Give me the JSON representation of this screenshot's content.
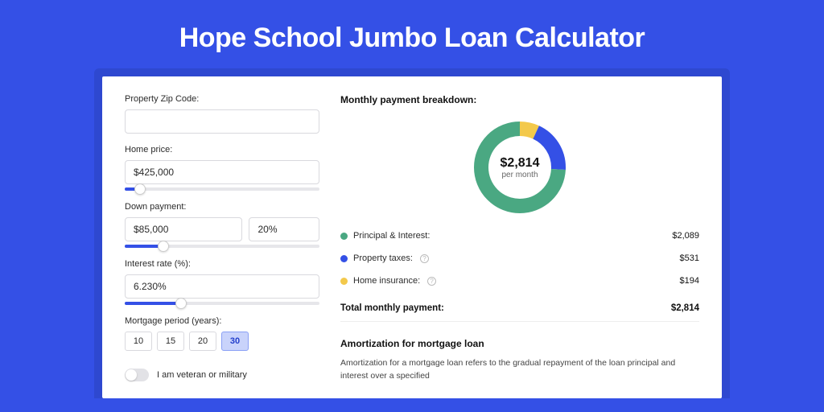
{
  "page": {
    "title": "Hope School Jumbo Loan Calculator",
    "background_color": "#3450e6",
    "shadow_color": "#2e48d0",
    "card_bg": "#ffffff"
  },
  "form": {
    "zip": {
      "label": "Property Zip Code:",
      "value": ""
    },
    "home_price": {
      "label": "Home price:",
      "value": "$425,000",
      "slider_pct": 8
    },
    "down_payment": {
      "label": "Down payment:",
      "amount": "$85,000",
      "pct": "20%",
      "slider_pct": 20
    },
    "interest_rate": {
      "label": "Interest rate (%):",
      "value": "6.230%",
      "slider_pct": 29
    },
    "mortgage_period": {
      "label": "Mortgage period (years):",
      "options": [
        "10",
        "15",
        "20",
        "30"
      ],
      "selected_index": 3
    },
    "veteran": {
      "label": "I am veteran or military",
      "checked": false
    }
  },
  "breakdown": {
    "title": "Monthly payment breakdown:",
    "center_amount": "$2,814",
    "center_sub": "per month",
    "slices": [
      {
        "name": "Principal & Interest:",
        "value": "$2,089",
        "pct": 74.2,
        "color": "#4aa882",
        "has_info": false
      },
      {
        "name": "Property taxes:",
        "value": "$531",
        "pct": 18.9,
        "color": "#3450e6",
        "has_info": true
      },
      {
        "name": "Home insurance:",
        "value": "$194",
        "pct": 6.9,
        "color": "#f3c94b",
        "has_info": true
      }
    ],
    "total_label": "Total monthly payment:",
    "total_value": "$2,814",
    "donut_stroke_width": 18
  },
  "amortization": {
    "title": "Amortization for mortgage loan",
    "text": "Amortization for a mortgage loan refers to the gradual repayment of the loan principal and interest over a specified"
  }
}
